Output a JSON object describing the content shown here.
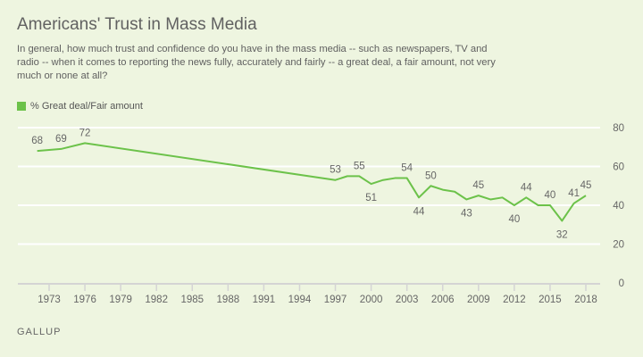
{
  "chart_data": {
    "type": "line",
    "title": "Americans' Trust in Mass Media",
    "subtitle": "In general, how much trust and confidence do you have in the mass media -- such as newspapers, TV and radio -- when it comes to reporting the news fully, accurately and fairly -- a great deal, a fair amount, not very much or none at all?",
    "source": "GALLUP",
    "ylim": [
      0,
      80
    ],
    "yticks": [
      0,
      20,
      40,
      60,
      80
    ],
    "xlim": [
      1972,
      2018
    ],
    "xticks": [
      1973,
      1976,
      1979,
      1982,
      1985,
      1988,
      1991,
      1994,
      1997,
      2000,
      2003,
      2006,
      2009,
      2012,
      2015,
      2018
    ],
    "grid": true,
    "legend_placement": "top-left",
    "series": [
      {
        "name": "% Great deal/Fair amount",
        "color": "#6cc24a",
        "x": [
          1972,
          1974,
          1976,
          1997,
          1998,
          1999,
          2000,
          2001,
          2002,
          2003,
          2004,
          2005,
          2006,
          2007,
          2008,
          2009,
          2010,
          2011,
          2012,
          2013,
          2014,
          2015,
          2016,
          2017,
          2018
        ],
        "values": [
          68,
          69,
          72,
          53,
          55,
          55,
          51,
          53,
          54,
          54,
          44,
          50,
          48,
          47,
          43,
          45,
          43,
          44,
          40,
          44,
          40,
          40,
          32,
          41,
          45
        ]
      }
    ],
    "data_labels": [
      {
        "x": 1972,
        "value": 68,
        "pos": "above"
      },
      {
        "x": 1974,
        "value": 69,
        "pos": "above"
      },
      {
        "x": 1976,
        "value": 72,
        "pos": "above"
      },
      {
        "x": 1997,
        "value": 53,
        "pos": "above"
      },
      {
        "x": 1999,
        "value": 55,
        "pos": "above"
      },
      {
        "x": 2000,
        "value": 51,
        "pos": "below"
      },
      {
        "x": 2003,
        "value": 54,
        "pos": "above"
      },
      {
        "x": 2004,
        "value": 44,
        "pos": "below"
      },
      {
        "x": 2005,
        "value": 50,
        "pos": "above"
      },
      {
        "x": 2008,
        "value": 43,
        "pos": "below"
      },
      {
        "x": 2009,
        "value": 45,
        "pos": "above"
      },
      {
        "x": 2012,
        "value": 40,
        "pos": "below"
      },
      {
        "x": 2013,
        "value": 44,
        "pos": "above"
      },
      {
        "x": 2015,
        "value": 40,
        "pos": "above"
      },
      {
        "x": 2016,
        "value": 32,
        "pos": "below"
      },
      {
        "x": 2017,
        "value": 41,
        "pos": "above"
      },
      {
        "x": 2018,
        "value": 45,
        "pos": "above"
      }
    ]
  }
}
